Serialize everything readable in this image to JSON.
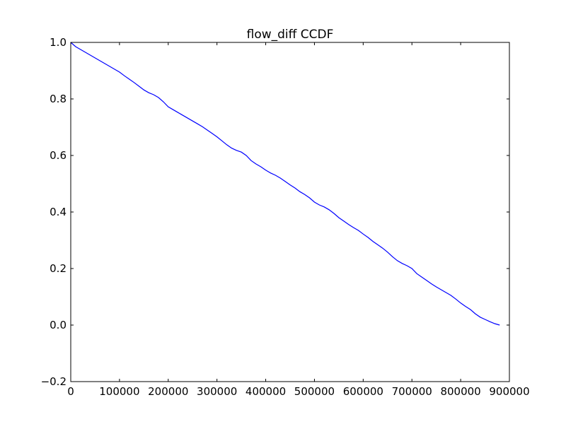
{
  "chart_data": {
    "type": "line",
    "title": "flow_diff CCDF",
    "xlabel": "",
    "ylabel": "",
    "xlim": [
      0,
      900000
    ],
    "ylim": [
      -0.2,
      1.0
    ],
    "grid": false,
    "x_ticks": [
      0,
      100000,
      200000,
      300000,
      400000,
      500000,
      600000,
      700000,
      800000,
      900000
    ],
    "x_tick_labels": [
      "0",
      "100000",
      "200000",
      "300000",
      "400000",
      "500000",
      "600000",
      "700000",
      "800000",
      "900000"
    ],
    "y_ticks": [
      -0.2,
      0.0,
      0.2,
      0.4,
      0.6,
      0.8,
      1.0
    ],
    "y_tick_labels": [
      "−0.2",
      "0.0",
      "0.2",
      "0.4",
      "0.6",
      "0.8",
      "1.0"
    ],
    "series": [
      {
        "color": "#0000ff",
        "points": [
          [
            0,
            1.0
          ],
          [
            10000,
            0.985
          ],
          [
            20000,
            0.975
          ],
          [
            30000,
            0.965
          ],
          [
            40000,
            0.955
          ],
          [
            50000,
            0.945
          ],
          [
            60000,
            0.935
          ],
          [
            70000,
            0.925
          ],
          [
            80000,
            0.915
          ],
          [
            90000,
            0.905
          ],
          [
            100000,
            0.895
          ],
          [
            110000,
            0.882
          ],
          [
            120000,
            0.87
          ],
          [
            130000,
            0.858
          ],
          [
            140000,
            0.845
          ],
          [
            150000,
            0.832
          ],
          [
            160000,
            0.822
          ],
          [
            170000,
            0.815
          ],
          [
            180000,
            0.805
          ],
          [
            190000,
            0.79
          ],
          [
            200000,
            0.772
          ],
          [
            210000,
            0.762
          ],
          [
            220000,
            0.752
          ],
          [
            230000,
            0.742
          ],
          [
            240000,
            0.732
          ],
          [
            250000,
            0.722
          ],
          [
            260000,
            0.712
          ],
          [
            270000,
            0.702
          ],
          [
            280000,
            0.69
          ],
          [
            290000,
            0.678
          ],
          [
            300000,
            0.666
          ],
          [
            310000,
            0.652
          ],
          [
            320000,
            0.638
          ],
          [
            330000,
            0.626
          ],
          [
            340000,
            0.618
          ],
          [
            350000,
            0.612
          ],
          [
            360000,
            0.6
          ],
          [
            370000,
            0.582
          ],
          [
            380000,
            0.57
          ],
          [
            390000,
            0.56
          ],
          [
            400000,
            0.548
          ],
          [
            410000,
            0.538
          ],
          [
            420000,
            0.53
          ],
          [
            430000,
            0.52
          ],
          [
            440000,
            0.508
          ],
          [
            450000,
            0.496
          ],
          [
            460000,
            0.485
          ],
          [
            470000,
            0.472
          ],
          [
            480000,
            0.462
          ],
          [
            490000,
            0.45
          ],
          [
            500000,
            0.435
          ],
          [
            510000,
            0.425
          ],
          [
            520000,
            0.418
          ],
          [
            530000,
            0.408
          ],
          [
            540000,
            0.395
          ],
          [
            550000,
            0.38
          ],
          [
            560000,
            0.368
          ],
          [
            570000,
            0.356
          ],
          [
            580000,
            0.345
          ],
          [
            590000,
            0.335
          ],
          [
            600000,
            0.322
          ],
          [
            610000,
            0.31
          ],
          [
            620000,
            0.296
          ],
          [
            630000,
            0.284
          ],
          [
            640000,
            0.272
          ],
          [
            650000,
            0.258
          ],
          [
            660000,
            0.242
          ],
          [
            670000,
            0.228
          ],
          [
            680000,
            0.218
          ],
          [
            690000,
            0.21
          ],
          [
            700000,
            0.2
          ],
          [
            710000,
            0.182
          ],
          [
            720000,
            0.17
          ],
          [
            730000,
            0.158
          ],
          [
            740000,
            0.146
          ],
          [
            750000,
            0.135
          ],
          [
            760000,
            0.125
          ],
          [
            770000,
            0.115
          ],
          [
            780000,
            0.105
          ],
          [
            790000,
            0.092
          ],
          [
            800000,
            0.078
          ],
          [
            810000,
            0.066
          ],
          [
            820000,
            0.055
          ],
          [
            830000,
            0.04
          ],
          [
            840000,
            0.028
          ],
          [
            850000,
            0.02
          ],
          [
            860000,
            0.012
          ],
          [
            870000,
            0.005
          ],
          [
            880000,
            0.0
          ]
        ]
      }
    ]
  }
}
